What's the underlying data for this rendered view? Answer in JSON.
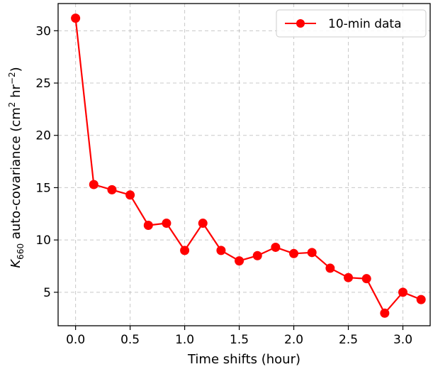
{
  "chart_data": {
    "type": "line",
    "xlabel": "Time shifts (hour)",
    "ylabel": {
      "prefix": "K",
      "subscript": "660",
      "middle": " auto-covariance (cm",
      "sup1": "2",
      "mid2": " hr",
      "sup2": "−2",
      "suffix": ")"
    },
    "xlim": [
      -0.16,
      3.25
    ],
    "ylim": [
      1.8,
      32.6
    ],
    "xticks": [
      {
        "value": 0.0,
        "label": "0.0"
      },
      {
        "value": 0.5,
        "label": "0.5"
      },
      {
        "value": 1.0,
        "label": "1.0"
      },
      {
        "value": 1.5,
        "label": "1.5"
      },
      {
        "value": 2.0,
        "label": "2.0"
      },
      {
        "value": 2.5,
        "label": "2.5"
      },
      {
        "value": 3.0,
        "label": "3.0"
      }
    ],
    "yticks": [
      {
        "value": 5,
        "label": "5"
      },
      {
        "value": 10,
        "label": "10"
      },
      {
        "value": 15,
        "label": "15"
      },
      {
        "value": 20,
        "label": "20"
      },
      {
        "value": 25,
        "label": "25"
      },
      {
        "value": 30,
        "label": "30"
      }
    ],
    "grid": true,
    "legend_position": "top-right",
    "series": [
      {
        "name": "10-min data",
        "color": "#ff0000",
        "marker": "circle",
        "x": [
          0.0,
          0.1667,
          0.3333,
          0.5,
          0.6667,
          0.8333,
          1.0,
          1.1667,
          1.3333,
          1.5,
          1.6667,
          1.8333,
          2.0,
          2.1667,
          2.3333,
          2.5,
          2.6667,
          2.8333,
          3.0,
          3.1667
        ],
        "y": [
          31.2,
          15.3,
          14.8,
          14.3,
          11.4,
          11.6,
          9.0,
          11.6,
          9.0,
          8.0,
          8.5,
          9.3,
          8.7,
          8.8,
          7.3,
          6.4,
          6.3,
          3.0,
          5.0,
          4.3
        ]
      }
    ]
  }
}
